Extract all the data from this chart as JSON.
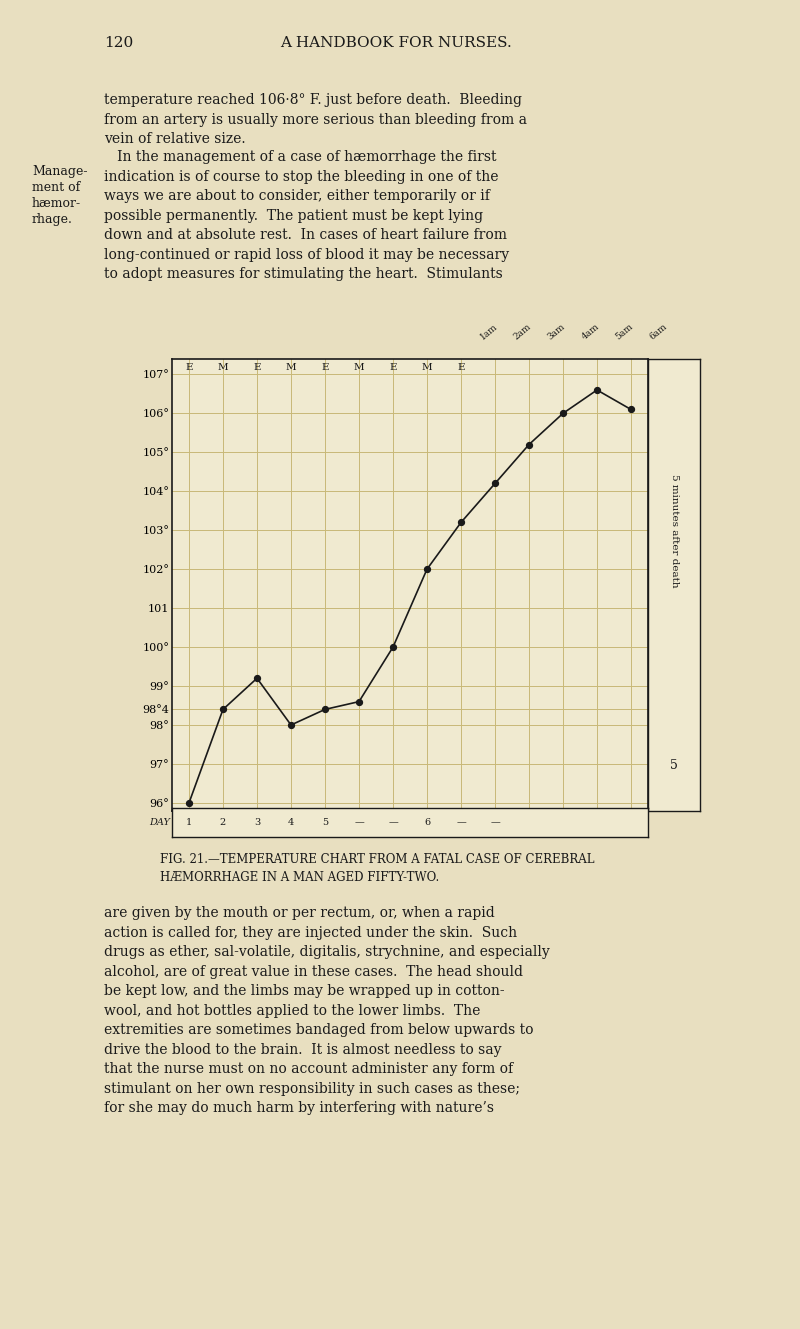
{
  "background_color": "#f5f0d8",
  "page_background": "#e8dfc0",
  "title": "FIG. 21.—TEMPERATURE CHART FROM A FATAL CASE OF CEREBRAL\nHÆMORRHAGE IN A MAN AGED FIFTY-TWO.",
  "header_text": "120        A HANDBOOK FOR NURSES.",
  "y_min": 96,
  "y_max": 107,
  "y_ticks": [
    96,
    97,
    98,
    98.4,
    99,
    100,
    101,
    102,
    103,
    104,
    105,
    106,
    107
  ],
  "y_tick_labels": [
    "96°",
    "97°",
    "98°",
    "98°4",
    "99°",
    "100°",
    "101",
    "102°",
    "103°",
    "104°",
    "105°",
    "106°",
    "107°"
  ],
  "x_days": [
    "1",
    "2",
    "3",
    "4",
    "5",
    "—",
    "—",
    "6",
    "—",
    "—"
  ],
  "time_labels": [
    "1am",
    "2am",
    "3am",
    "4am",
    "5am",
    "6am"
  ],
  "col_header": [
    "E",
    "M",
    "E",
    "M",
    "E",
    "M",
    "E",
    "M",
    "E"
  ],
  "curve_x": [
    1,
    2,
    3,
    4,
    5,
    6,
    7,
    8,
    9,
    10,
    11,
    12,
    13,
    14
  ],
  "curve_y": [
    96.0,
    98.4,
    99.2,
    98.0,
    98.4,
    98.6,
    100.0,
    102.0,
    103.2,
    104.2,
    105.2,
    106.0,
    106.6,
    106.1
  ],
  "right_label": "5 minutes after death",
  "line_color": "#1a1a1a",
  "grid_color": "#c8b878",
  "text_color": "#1a1a1a",
  "caption_fontsize": 9,
  "axis_fontsize": 8
}
